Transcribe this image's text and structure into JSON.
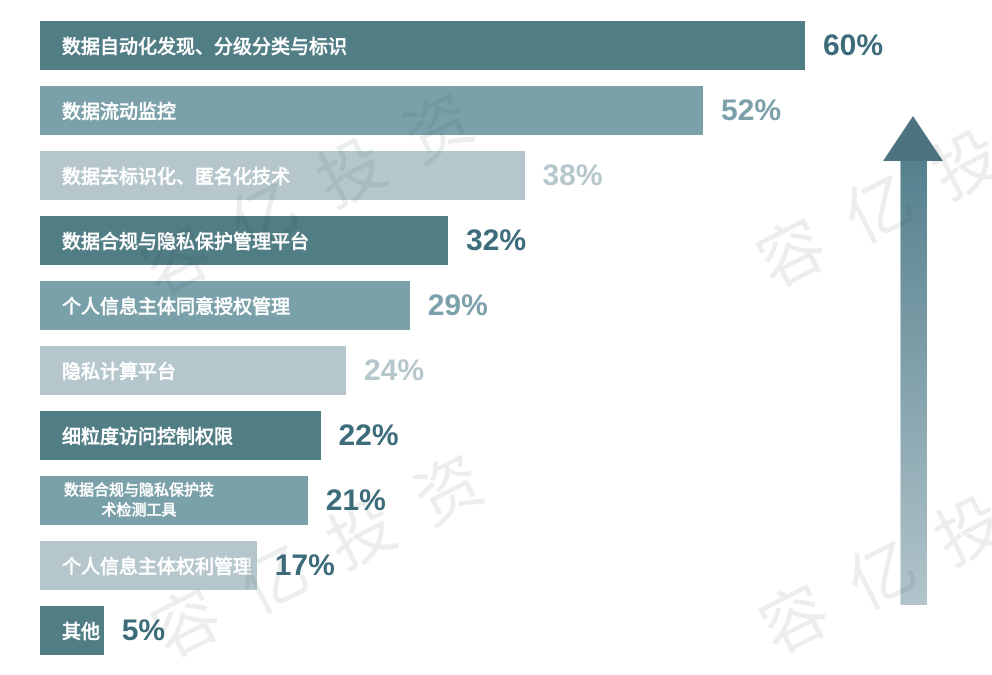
{
  "watermark": {
    "text": "容亿投资"
  },
  "colors": {
    "bar_dark": "#517d85",
    "bar_medium": "#7aa1a9",
    "bar_light": "#b5c7cc",
    "value_dark": "#3d6d7b",
    "value_medium": "#7da1aa",
    "value_light": "#b7c8cd",
    "label_text": "#ffffff",
    "arrow_head": "#4d747e",
    "arrow_shaft_top": "#54808d",
    "arrow_shaft_bottom": "#b2c4cb",
    "watermark_tint": "rgba(47,62,68,0.09)"
  },
  "chart_data": {
    "type": "bar",
    "orientation": "horizontal",
    "value_unit": "%",
    "xlim": [
      0,
      60
    ],
    "legend": "none",
    "grid": false,
    "categories": [
      "数据自动化发现、分级分类与标识",
      "数据流动监控",
      "数据去标识化、匿名化技术",
      "数据合规与隐私保护管理平台",
      "个人信息主体同意授权管理",
      "隐私计算平台",
      "细粒度访问控制权限",
      "数据合规与隐私保护技术检测工具",
      "个人信息主体权利管理",
      "其他"
    ],
    "values": [
      60,
      52,
      38,
      32,
      29,
      24,
      22,
      21,
      17,
      5
    ],
    "bars": [
      {
        "label": "数据自动化发现、分级分类与标识",
        "value": 60,
        "value_label": "60%",
        "bar_shade": "dark",
        "value_shade": "dark"
      },
      {
        "label": "数据流动监控",
        "value": 52,
        "value_label": "52%",
        "bar_shade": "medium",
        "value_shade": "medium"
      },
      {
        "label": "数据去标识化、匿名化技术",
        "value": 38,
        "value_label": "38%",
        "bar_shade": "light",
        "value_shade": "light"
      },
      {
        "label": "数据合规与隐私保护管理平台",
        "value": 32,
        "value_label": "32%",
        "bar_shade": "dark",
        "value_shade": "dark"
      },
      {
        "label": "个人信息主体同意授权管理",
        "value": 29,
        "value_label": "29%",
        "bar_shade": "medium",
        "value_shade": "medium"
      },
      {
        "label": "隐私计算平台",
        "value": 24,
        "value_label": "24%",
        "bar_shade": "light",
        "value_shade": "light"
      },
      {
        "label": "细粒度访问控制权限",
        "value": 22,
        "value_label": "22%",
        "bar_shade": "dark",
        "value_shade": "dark"
      },
      {
        "label": "数据合规与隐私保护技\n术检测工具",
        "value": 21,
        "value_label": "21%",
        "bar_shade": "medium",
        "value_shade": "dark"
      },
      {
        "label": "个人信息主体权利管理",
        "value": 17,
        "value_label": "17%",
        "bar_shade": "light",
        "value_shade": "dark"
      },
      {
        "label": "其他",
        "value": 5,
        "value_label": "5%",
        "bar_shade": "dark",
        "value_shade": "dark"
      }
    ]
  }
}
